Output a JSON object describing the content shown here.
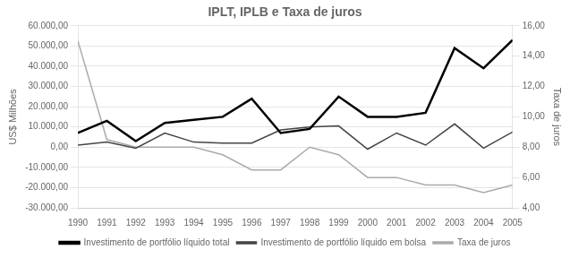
{
  "chart_data": {
    "type": "line",
    "title": "IPLT, IPLB e Taxa de juros",
    "x": [
      1990,
      1991,
      1992,
      1993,
      1994,
      1995,
      1996,
      1997,
      1998,
      1999,
      2000,
      2001,
      2002,
      2003,
      2004,
      2005
    ],
    "xlim": [
      1990,
      2005
    ],
    "xticks": [
      1990,
      1991,
      1992,
      1993,
      1994,
      1995,
      1996,
      1997,
      1998,
      1999,
      2000,
      2001,
      2002,
      2003,
      2004,
      2005
    ],
    "ylabel": "US$ Milhões",
    "y2label": "Taxa de juros",
    "ylim": [
      -30000,
      60000
    ],
    "yticks": [
      {
        "value": -30000,
        "label": "-30.000,00"
      },
      {
        "value": -20000,
        "label": "-20.000,00"
      },
      {
        "value": -10000,
        "label": "-10.000,00"
      },
      {
        "value": 0,
        "label": "0,00"
      },
      {
        "value": 10000,
        "label": "10.000,00"
      },
      {
        "value": 20000,
        "label": "20.000,00"
      },
      {
        "value": 30000,
        "label": "30.000,00"
      },
      {
        "value": 40000,
        "label": "40.000,00"
      },
      {
        "value": 50000,
        "label": "50.000,00"
      },
      {
        "value": 60000,
        "label": "60.000,00"
      }
    ],
    "y2lim": [
      4.0,
      16.0
    ],
    "y2ticks": [
      {
        "value": 4.0,
        "label": "4,00"
      },
      {
        "value": 6.0,
        "label": "6,00"
      },
      {
        "value": 8.0,
        "label": "8,00"
      },
      {
        "value": 10.0,
        "label": "10,00"
      },
      {
        "value": 12.0,
        "label": "12,00"
      },
      {
        "value": 14.0,
        "label": "14,00"
      },
      {
        "value": 16.0,
        "label": "16,00"
      }
    ],
    "grid": true,
    "legend": "bottom",
    "series": [
      {
        "name": "Investimento de portfólio líquido total",
        "color": "#000000",
        "values": [
          7000,
          13000,
          3000,
          12000,
          13500,
          15000,
          24000,
          7000,
          9000,
          25000,
          15000,
          15000,
          17000,
          49000,
          39000,
          53000
        ]
      },
      {
        "name": "Investimento de portfólio líquido em bolsa",
        "color": "#444444",
        "values": [
          1000,
          2500,
          -500,
          7000,
          2500,
          2000,
          2000,
          8500,
          10000,
          10500,
          -1000,
          7000,
          1000,
          11500,
          -500,
          7500
        ]
      },
      {
        "name": "Taxa de juros",
        "color": "#aaaaaa",
        "axis": "y2",
        "values": [
          15.0,
          8.5,
          8.0,
          8.0,
          8.0,
          7.5,
          6.5,
          6.5,
          8.0,
          7.5,
          6.0,
          6.0,
          5.5,
          5.5,
          5.0,
          5.5
        ]
      }
    ]
  }
}
